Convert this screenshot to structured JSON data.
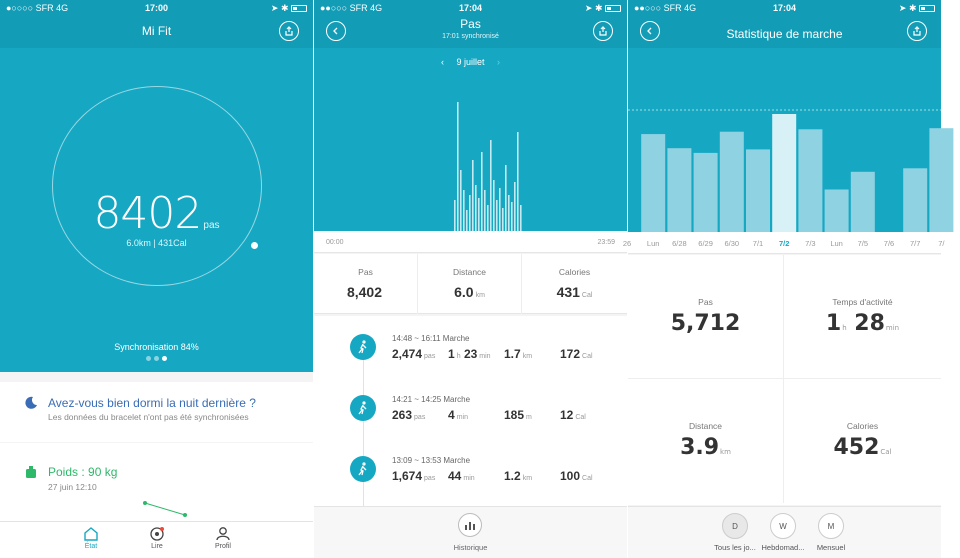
{
  "status": {
    "s1": {
      "carrier": "●○○○○ SFR   4G",
      "time": "17:00"
    },
    "s2": {
      "carrier": "●●○○○ SFR   4G",
      "time": "17:04"
    },
    "s3": {
      "carrier": "●●○○○ SFR   4G",
      "time": "17:04"
    }
  },
  "home": {
    "title": "Mi Fit",
    "steps": "8402",
    "steps_unit": "pas",
    "sub": "6.0km | 431Cal",
    "sync_text": "Synchronisation 84%",
    "sync_progress": 0.84,
    "sleep_title": "Avez-vous bien dormi la nuit dernière ?",
    "sleep_desc": "Les données du bracelet n'ont pas été synchronisées",
    "weight_title": "Poids :  90 kg",
    "weight_date": "27 juin 12:10",
    "tabs": [
      {
        "label": "État",
        "icon": "home-icon"
      },
      {
        "label": "Lire",
        "icon": "target-icon"
      },
      {
        "label": "Profil",
        "icon": "person-icon"
      }
    ]
  },
  "steps_detail": {
    "title": "Pas",
    "subtitle": "17:01 synchronisé",
    "date": "9 juillet",
    "axis_start": "00:00",
    "axis_end": "23:59",
    "summary": [
      {
        "label": "Pas",
        "value": "8,402",
        "unit": ""
      },
      {
        "label": "Distance",
        "value": "6.0",
        "unit": "km"
      },
      {
        "label": "Calories",
        "value": "431",
        "unit": "Cal"
      }
    ],
    "activities": [
      {
        "time": "14:48 ~ 16:11 Marche",
        "steps": "2,474",
        "steps_unit": "pas",
        "dur_h": "1",
        "dur_h_unit": "h",
        "dur_m": "23",
        "dur_m_unit": "min",
        "dist": "1.7",
        "dist_unit": "km",
        "cal": "172",
        "cal_unit": "Cal"
      },
      {
        "time": "14:21 ~ 14:25 Marche",
        "steps": "263",
        "steps_unit": "pas",
        "dur_h": "",
        "dur_h_unit": "",
        "dur_m": "4",
        "dur_m_unit": "min",
        "dist": "185",
        "dist_unit": "m",
        "cal": "12",
        "cal_unit": "Cal"
      },
      {
        "time": "13:09 ~ 13:53 Marche",
        "steps": "1,674",
        "steps_unit": "pas",
        "dur_h": "",
        "dur_h_unit": "",
        "dur_m": "44",
        "dur_m_unit": "min",
        "dist": "1.2",
        "dist_unit": "km",
        "cal": "100",
        "cal_unit": "Cal"
      }
    ],
    "history_label": "Historique"
  },
  "stats": {
    "title": "Statistique de marche",
    "days": [
      "26",
      "Lun",
      "6/28",
      "6/29",
      "6/30",
      "7/1",
      "7/2",
      "7/3",
      "Lun",
      "7/5",
      "7/6",
      "7/7",
      "7/"
    ],
    "selected_day": "7/2",
    "bars": [
      0,
      0.83,
      0.71,
      0.67,
      0.85,
      0.7,
      1.0,
      0.87,
      0.36,
      0.51,
      0,
      0.54,
      0.88
    ],
    "cells": [
      {
        "label": "Pas",
        "value": "5,712",
        "v2": "",
        "unit": "",
        "unit2": ""
      },
      {
        "label": "Temps d'activité",
        "value": "1",
        "unit": "h",
        "v2": "28",
        "unit2": "min"
      },
      {
        "label": "Distance",
        "value": "3.9",
        "unit": "km",
        "v2": "",
        "unit2": ""
      },
      {
        "label": "Calories",
        "value": "452",
        "unit": "Cal",
        "v2": "",
        "unit2": ""
      }
    ],
    "periods": [
      {
        "key": "D",
        "label": "Tous les jo..."
      },
      {
        "key": "W",
        "label": "Hebdomad..."
      },
      {
        "key": "M",
        "label": "Mensuel"
      }
    ]
  },
  "colors": {
    "accent": "#16a8c3",
    "weight": "#2eb86a",
    "sleep": "#3a6db5"
  }
}
